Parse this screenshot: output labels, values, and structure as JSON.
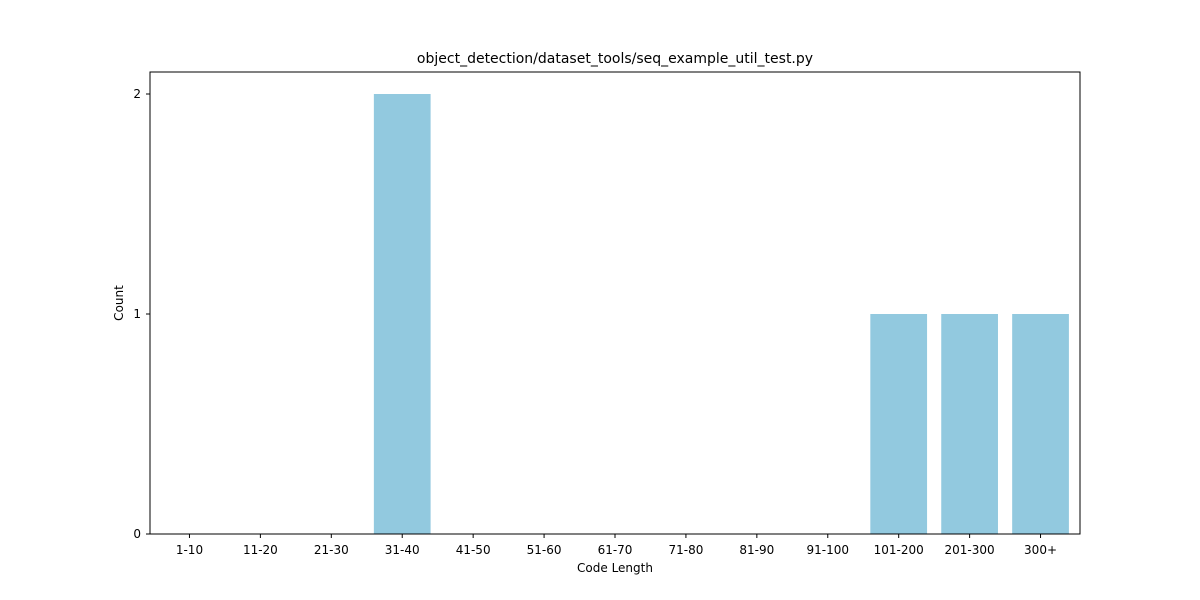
{
  "chart_data": {
    "type": "bar",
    "title": "object_detection/dataset_tools/seq_example_util_test.py",
    "xlabel": "Code Length",
    "ylabel": "Count",
    "categories": [
      "1-10",
      "11-20",
      "21-30",
      "31-40",
      "41-50",
      "51-60",
      "61-70",
      "71-80",
      "81-90",
      "91-100",
      "101-200",
      "201-300",
      "300+"
    ],
    "values": [
      0,
      0,
      0,
      2,
      0,
      0,
      0,
      0,
      0,
      0,
      1,
      1,
      1
    ],
    "yticks": [
      0,
      1,
      2
    ],
    "ylim": [
      0,
      2.1
    ],
    "bar_color": "#92c9df",
    "grid": false
  }
}
